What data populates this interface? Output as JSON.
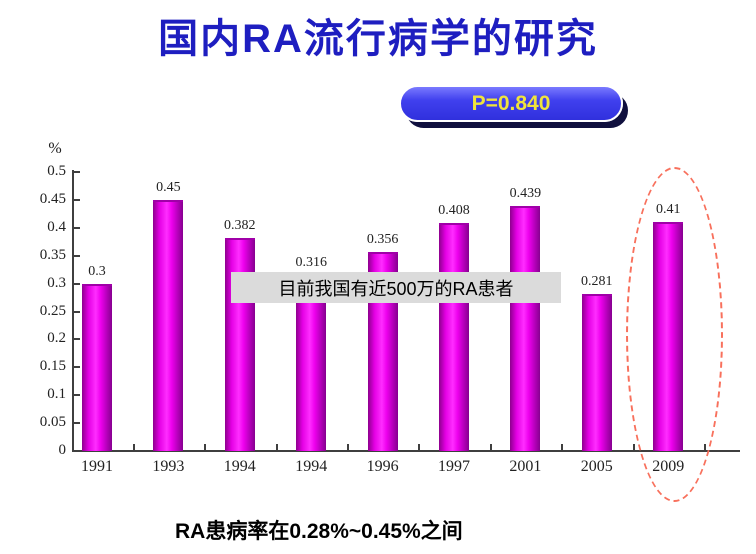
{
  "slide": {
    "title": "国内RA流行病学的研究",
    "p_value_badge": "P=0.840",
    "overlay_note": "目前我国有近500万的RA患者",
    "footer_note": "RA患病率在0.28%~0.45%之间"
  },
  "colors": {
    "title_blue": "#1e1ec0",
    "badge_blue": "#4040ee",
    "badge_shadow_navy": "#10103e",
    "badge_text_yellow": "#f0e43c",
    "bar_magenta": "#ff00ff",
    "bar_edge_magenta": "#8d008d",
    "highlight_ellipse_red": "#f8705c",
    "note_bg_gray": "#dbdbdb",
    "axis_gray": "#3f3f3f"
  },
  "chart_data": {
    "type": "bar",
    "categories": [
      "1991",
      "1993",
      "1994",
      "1994",
      "1996",
      "1997",
      "2001",
      "2005",
      "2009"
    ],
    "values": [
      0.3,
      0.45,
      0.382,
      0.316,
      0.356,
      0.408,
      0.439,
      0.281,
      0.41
    ],
    "value_labels": [
      "0.3",
      "0.45",
      "0.382",
      "0.316",
      "0.356",
      "0.408",
      "0.439",
      "0.281",
      "0.41"
    ],
    "title": "",
    "xlabel": "",
    "ylabel": "%",
    "ylim": [
      0,
      0.5
    ],
    "ytick_step": 0.05,
    "ytick_labels": [
      "0.5",
      "0.45",
      "0.4",
      "0.35",
      "0.3",
      "0.25",
      "0.2",
      "0.15",
      "0.1",
      "0.05",
      "0"
    ],
    "grid": false,
    "legend_position": "none",
    "highlighted_category": "2009",
    "bar_color": "magenta-cylinder-gradient"
  }
}
